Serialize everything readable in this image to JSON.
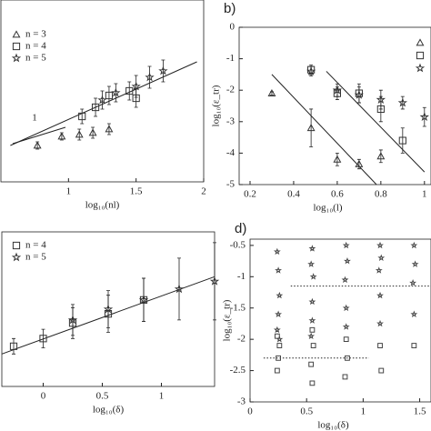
{
  "chart_data": [
    {
      "type": "scatter",
      "xlabel": "log₁₀(nl)",
      "annotation": "1",
      "xlim": [
        0.5,
        2
      ],
      "ylim": [
        0,
        1
      ],
      "xticks": [
        1,
        1.5,
        2
      ],
      "series": [
        {
          "name": "n = 3",
          "marker": "triangle",
          "color": "#333",
          "x": [
            0.77,
            0.95,
            1.08,
            1.18,
            1.3
          ],
          "values": [
            0.2,
            0.25,
            0.26,
            0.27,
            0.29
          ],
          "errors": [
            0.02,
            0.02,
            0.03,
            0.03,
            0.03
          ]
        },
        {
          "name": "n = 4",
          "marker": "square",
          "color": "#333",
          "x": [
            1.1,
            1.2,
            1.3,
            1.45,
            1.5
          ],
          "values": [
            0.36,
            0.41,
            0.475,
            0.5,
            0.46
          ],
          "errors": [
            0.04,
            0.05,
            0.05,
            0.05,
            0.05
          ]
        },
        {
          "name": "n = 5",
          "marker": "star",
          "color": "#333",
          "x": [
            1.25,
            1.35,
            1.5,
            1.6,
            1.7
          ],
          "values": [
            0.45,
            0.49,
            0.525,
            0.575,
            0.61
          ],
          "errors": [
            0.05,
            0.05,
            0.06,
            0.06,
            0.06
          ]
        }
      ],
      "fit_lines": [
        {
          "x": [
            0.57,
            1.95
          ],
          "values": [
            0.2,
            0.66
          ]
        }
      ]
    },
    {
      "type": "scatter",
      "title": "b)",
      "xlabel": "log₁₀(l)",
      "ylabel": "log₁₀(ε_tr)",
      "xlim": [
        0.15,
        1.03
      ],
      "ylim": [
        -5,
        0
      ],
      "xticks": [
        0.2,
        0.4,
        0.6,
        0.8,
        1
      ],
      "yticks": [
        0,
        -1,
        -2,
        -3,
        -4,
        -5
      ],
      "series": [
        {
          "marker": "triangle",
          "color": "#333",
          "x": [
            0.3,
            0.48,
            0.6,
            0.7,
            0.8
          ],
          "values": [
            -2.1,
            -3.2,
            -4.2,
            -4.35,
            -4.1
          ],
          "errors": [
            0.05,
            0.6,
            0.2,
            0.15,
            0.2
          ]
        },
        {
          "marker": "square",
          "color": "#333",
          "x": [
            0.48,
            0.6,
            0.7,
            0.8,
            0.9
          ],
          "values": [
            -1.35,
            -2.1,
            -2.1,
            -2.6,
            -3.6
          ],
          "errors": [
            0.15,
            0.2,
            0.3,
            0.4,
            0.4
          ]
        },
        {
          "marker": "star",
          "color": "#333",
          "x": [
            0.48,
            0.6,
            0.7,
            0.8,
            0.9,
            1.0
          ],
          "values": [
            -1.4,
            -2.0,
            -2.15,
            -2.3,
            -2.4,
            -2.85
          ],
          "errors": [
            0.15,
            0.2,
            0.25,
            0.3,
            0.2,
            0.3
          ]
        }
      ],
      "fit_lines": [
        {
          "x": [
            0.3,
            0.78
          ],
          "values": [
            -1.5,
            -5
          ]
        },
        {
          "x": [
            0.55,
            1.0
          ],
          "values": [
            -1.4,
            -4.6
          ]
        }
      ]
    },
    {
      "type": "scatter",
      "xlabel": "log₁₀(δ)",
      "xlim": [
        -0.35,
        1.45
      ],
      "ylim": [
        0,
        1
      ],
      "xticks": [
        0,
        0.5,
        1
      ],
      "series": [
        {
          "name": "n = 4",
          "marker": "square",
          "color": "#333",
          "x": [
            -0.25,
            0,
            0.25,
            0.55,
            0.85
          ],
          "values": [
            0.26,
            0.31,
            0.41,
            0.47,
            0.56
          ],
          "errors": [
            0.05,
            0.06,
            0.1,
            0.12,
            0.14
          ]
        },
        {
          "name": "n = 5",
          "marker": "star",
          "color": "#333",
          "x": [
            0.25,
            0.55,
            0.85,
            1.15,
            1.45
          ],
          "values": [
            0.43,
            0.5,
            0.56,
            0.63,
            0.68
          ],
          "errors": [
            0.1,
            0.12,
            0.14,
            0.2,
            0.25
          ]
        }
      ],
      "fit_lines": [
        {
          "x": [
            -0.35,
            1.45
          ],
          "values": [
            0.21,
            0.71
          ]
        }
      ]
    },
    {
      "type": "scatter",
      "title": "d)",
      "xlabel": "log₁₀(δ)",
      "ylabel": "log₁₀(ε_tr)",
      "xlim": [
        0,
        1.6
      ],
      "ylim": [
        -3,
        -0.4
      ],
      "xticks": [
        0,
        0.5,
        1,
        1.5
      ],
      "yticks": [
        -0.5,
        -1,
        -1.5,
        -2,
        -2.5,
        -3
      ],
      "series": [
        {
          "marker": "star",
          "color": "#444",
          "x": [
            0.24,
            0.25,
            0.26,
            0.25,
            0.24,
            0.26,
            0.55,
            0.54,
            0.56,
            0.55,
            0.55,
            0.54,
            0.85,
            0.86,
            0.84,
            0.85,
            0.85,
            1.15,
            1.16,
            1.14,
            1.15,
            1.15,
            1.45,
            1.46,
            1.44,
            1.45
          ],
          "values": [
            -0.6,
            -0.9,
            -1.3,
            -1.6,
            -1.85,
            -2.0,
            -0.55,
            -0.8,
            -1.0,
            -1.4,
            -1.7,
            -1.95,
            -0.5,
            -0.75,
            -1.05,
            -1.5,
            -1.8,
            -0.5,
            -0.7,
            -0.9,
            -1.3,
            -1.75,
            -0.5,
            -0.8,
            -1.1,
            -1.6
          ]
        },
        {
          "marker": "square",
          "color": "#444",
          "x": [
            0.24,
            0.26,
            0.25,
            0.24,
            0.55,
            0.56,
            0.54,
            0.55,
            0.85,
            0.86,
            0.84,
            1.15,
            1.16,
            1.45
          ],
          "values": [
            -1.95,
            -2.1,
            -2.3,
            -2.5,
            -1.85,
            -2.1,
            -2.4,
            -2.7,
            -2.0,
            -2.3,
            -2.6,
            -2.1,
            -2.5,
            -2.1
          ]
        }
      ],
      "reference_lines": [
        {
          "x": [
            0.36,
            1.6
          ],
          "values": [
            -1.15,
            -1.15
          ]
        },
        {
          "x": [
            0.12,
            1.05
          ],
          "values": [
            -2.3,
            -2.3
          ]
        }
      ]
    }
  ]
}
